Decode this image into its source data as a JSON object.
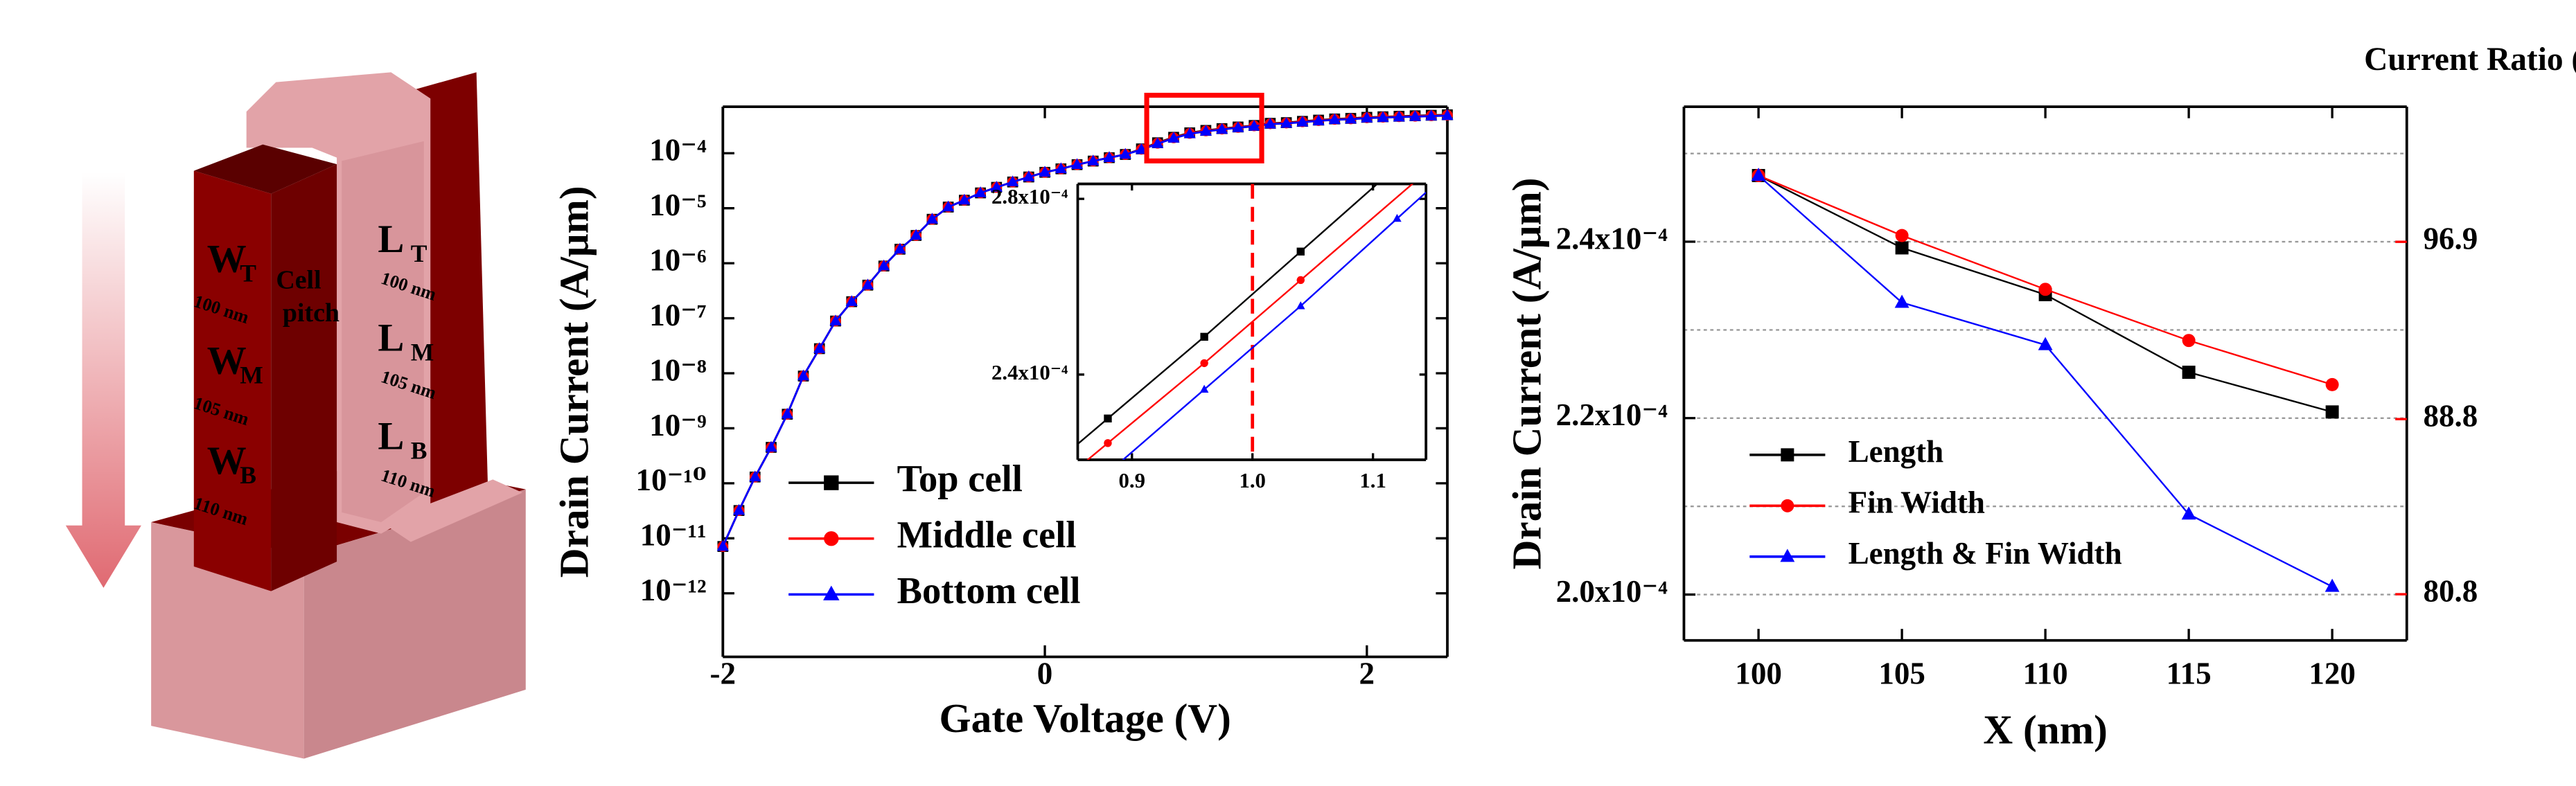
{
  "diagram": {
    "labels": [
      {
        "main": "W",
        "sub": "T",
        "size": "100 nm"
      },
      {
        "main": "W",
        "sub": "M",
        "size": "105 nm"
      },
      {
        "main": "W",
        "sub": "B",
        "size": "110 nm"
      },
      {
        "main": "L",
        "sub": "T",
        "size": "100 nm"
      },
      {
        "main": "L",
        "sub": "M",
        "size": "105 nm"
      },
      {
        "main": "L",
        "sub": "B",
        "size": "110 nm"
      }
    ],
    "cell_pitch": [
      "Cell",
      "pitch"
    ]
  },
  "chart_data": [
    {
      "type": "line",
      "xlabel": "Gate Voltage (V)",
      "ylabel": "Drain Current (A/μm)",
      "log_y": true,
      "legend": "lower left",
      "x": [
        -2,
        -1.9,
        -1.8,
        -1.7,
        -1.6,
        -1.5,
        -1.4,
        -1.3,
        -1.2,
        -1.1,
        -1,
        -0.9,
        -0.8,
        -0.7,
        -0.6,
        -0.5,
        -0.4,
        -0.3,
        -0.2,
        -0.1,
        0,
        0.1,
        0.2,
        0.3,
        0.4,
        0.5,
        0.6,
        0.7,
        0.8,
        0.9,
        1,
        1.1,
        1.2,
        1.3,
        1.4,
        1.5,
        1.6,
        1.7,
        1.8,
        1.9,
        2,
        2.1,
        2.2,
        2.3,
        2.4,
        2.5
      ],
      "xlim": [
        -2,
        2.5
      ],
      "xticks": [
        -2,
        0,
        2
      ],
      "ylim": [
        7e-14,
        0.0007
      ],
      "yticks": [
        {
          "value": 1e-12,
          "label": "10⁻¹²"
        },
        {
          "value": 1e-11,
          "label": "10⁻¹¹"
        },
        {
          "value": 1e-10,
          "label": "10⁻¹⁰"
        },
        {
          "value": 1e-09,
          "label": "10⁻⁹"
        },
        {
          "value": 1e-08,
          "label": "10⁻⁸"
        },
        {
          "value": 1e-07,
          "label": "10⁻⁷"
        },
        {
          "value": 1e-06,
          "label": "10⁻⁶"
        },
        {
          "value": 1e-05,
          "label": "10⁻⁵"
        },
        {
          "value": 0.0001,
          "label": "10⁻⁴"
        }
      ],
      "series": [
        {
          "name": "Top cell",
          "color": "#000000",
          "marker": "square",
          "values": [
            7.1e-12,
            3.2e-11,
            1.3e-10,
            4.5e-10,
            1.8e-09,
            8.9e-09,
            2.8e-08,
            8.9e-08,
            2e-07,
            4e-07,
            8.9e-07,
            1.8e-06,
            3.2e-06,
            6.3e-06,
            1.05e-05,
            1.4e-05,
            1.9e-05,
            2.4e-05,
            3e-05,
            3.7e-05,
            4.5e-05,
            5.2e-05,
            6.2e-05,
            7.2e-05,
            8.3e-05,
            9.5e-05,
            0.00012,
            0.000155,
            0.000195,
            0.000235,
            0.00026,
            0.00028,
            0.0003,
            0.00032,
            0.00035,
            0.00036,
            0.00038,
            0.0004,
            0.00042,
            0.00043,
            0.00045,
            0.00046,
            0.00047,
            0.00048,
            0.00049,
            0.0005
          ]
        },
        {
          "name": "Middle cell",
          "color": "#ff0000",
          "marker": "circle",
          "values": [
            7.1e-12,
            3.2e-11,
            1.3e-10,
            4.5e-10,
            1.8e-09,
            8.9e-09,
            2.8e-08,
            8.9e-08,
            2e-07,
            4e-07,
            8.9e-07,
            1.8e-06,
            3.2e-06,
            6.3e-06,
            1.05e-05,
            1.4e-05,
            1.9e-05,
            2.4e-05,
            3e-05,
            3.7e-05,
            4.5e-05,
            5.2e-05,
            6.2e-05,
            7.2e-05,
            8.3e-05,
            9.5e-05,
            0.000118,
            0.000152,
            0.000191,
            0.00023,
            0.000255,
            0.000275,
            0.000295,
            0.000315,
            0.000344,
            0.000354,
            0.000373,
            0.000393,
            0.000413,
            0.000422,
            0.000442,
            0.000452,
            0.000462,
            0.000471,
            0.000481,
            0.000491
          ]
        },
        {
          "name": "Bottom cell",
          "color": "#0000ff",
          "marker": "triangle",
          "values": [
            7.1e-12,
            3.2e-11,
            1.3e-10,
            4.5e-10,
            1.8e-09,
            8.9e-09,
            2.8e-08,
            8.9e-08,
            2e-07,
            4e-07,
            8.9e-07,
            1.8e-06,
            3.2e-06,
            6.3e-06,
            1.05e-05,
            1.4e-05,
            1.9e-05,
            2.4e-05,
            3e-05,
            3.7e-05,
            4.5e-05,
            5.2e-05,
            6.2e-05,
            7.2e-05,
            8.3e-05,
            9.5e-05,
            0.000116,
            0.000149,
            0.000187,
            0.000225,
            0.00025,
            0.00027,
            0.00029,
            0.000309,
            0.000338,
            0.000348,
            0.000367,
            0.000387,
            0.000406,
            0.000415,
            0.000435,
            0.000444,
            0.000454,
            0.000463,
            0.000473,
            0.000483
          ]
        }
      ]
    },
    {
      "type": "line",
      "xlim": [
        0.855,
        1.144
      ],
      "xticks": [
        0.9,
        {
          "value": 1,
          "label": "1.0"
        },
        1.1
      ],
      "ylim": [
        0.0002206,
        0.0002834
      ],
      "yticks": [
        {
          "value": 0.00024,
          "label": "2.4x10⁻⁴"
        },
        {
          "value": 0.00028,
          "label": "2.8x10⁻⁴"
        }
      ],
      "reference_x": 1,
      "reference_color": "#ff0000",
      "series": [
        {
          "name": "Top cell",
          "color": "#000000",
          "marker": "square",
          "x": [
            0.88,
            0.96,
            1.04
          ],
          "values": [
            0.00023,
            0.0002486,
            0.000268
          ]
        },
        {
          "name": "Middle cell",
          "color": "#ff0000",
          "marker": "circle",
          "x": [
            0.88,
            0.96,
            1.04
          ],
          "values": [
            0.0002244,
            0.0002426,
            0.0002615
          ]
        },
        {
          "name": "Bottom cell",
          "color": "#0000ff",
          "marker": "triangle",
          "x": [
            0.96,
            1.04,
            1.12
          ],
          "values": [
            0.0002366,
            0.0002556,
            0.0002755
          ]
        }
      ]
    },
    {
      "type": "line",
      "xlabel": "X (nm)",
      "ylabel": "Drain Current (A/μm)",
      "y2label": "Current Ratio (%)",
      "y2color": "#ff0000",
      "legend": "lower left",
      "grid": true,
      "x": [
        100,
        105,
        110,
        115,
        120
      ],
      "xlim": [
        97.4,
        122.6
      ],
      "xticks": [
        100,
        105,
        110,
        115,
        120
      ],
      "ylim": [
        0.0001948,
        0.0002553
      ],
      "yticks": [
        {
          "value": 0.0002,
          "label": "2.0x10⁻⁴"
        },
        {
          "value": 0.00022,
          "label": "2.2x10⁻⁴"
        },
        {
          "value": 0.00024,
          "label": "2.4x10⁻⁴"
        }
      ],
      "minor_yticks": [
        0.00021,
        0.00023,
        0.00025
      ],
      "y2lim": [
        78.69,
        103.07
      ],
      "y2ticks": [
        80.8,
        88.8,
        96.9
      ],
      "series": [
        {
          "name": "Length",
          "color": "#000000",
          "marker": "square",
          "values": [
            0.0002475,
            0.0002393,
            0.000234,
            0.0002252,
            0.0002207
          ]
        },
        {
          "name": "Fin Width",
          "color": "#ff0000",
          "marker": "circle",
          "values": [
            0.0002475,
            0.0002407,
            0.0002346,
            0.0002288,
            0.0002238
          ]
        },
        {
          "name": "Length & Fin Width",
          "color": "#0000ff",
          "marker": "triangle",
          "values": [
            0.0002475,
            0.0002331,
            0.0002283,
            0.0002091,
            0.0002009
          ]
        }
      ]
    }
  ]
}
